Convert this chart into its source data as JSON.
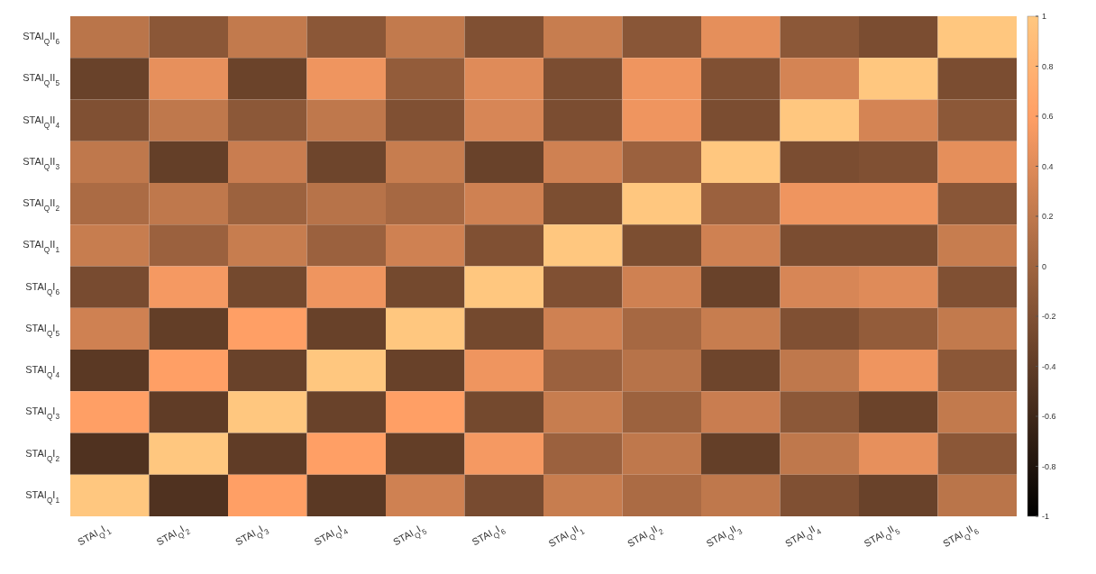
{
  "chart_data": {
    "type": "heatmap",
    "categories": [
      "STAI$_{Q}$I$_{1}$",
      "STAI$_{Q}$I$_{2}$",
      "STAI$_{Q}$I$_{3}$",
      "STAI$_{Q}$I$_{4}$",
      "STAI$_{Q}$I$_{5}$",
      "STAI$_{Q}$I$_{6}$",
      "STAI$_{Q}$II$_{1}$",
      "STAI$_{Q}$II$_{2}$",
      "STAI$_{Q}$II$_{3}$",
      "STAI$_{Q}$II$_{4}$",
      "STAI$_{Q}$II$_{5}$",
      "STAI$_{Q}$II$_{6}$"
    ],
    "y_categories": [
      "STAI$_{Q}$II$_{6}$",
      "STAI$_{Q}$II$_{5}$",
      "STAI$_{Q}$II$_{4}$",
      "STAI$_{Q}$II$_{3}$",
      "STAI$_{Q}$II$_{2}$",
      "STAI$_{Q}$II$_{1}$",
      "STAI$_{Q}$I$_{6}$",
      "STAI$_{Q}$I$_{5}$",
      "STAI$_{Q}$I$_{4}$",
      "STAI$_{Q}$I$_{3}$",
      "STAI$_{Q}$I$_{2}$",
      "STAI$_{Q}$I$_{1}$"
    ],
    "cells": [
      [
        0.17,
        -0.13,
        0.22,
        -0.13,
        0.22,
        -0.2,
        0.25,
        -0.14,
        0.44,
        -0.12,
        -0.23,
        1
      ],
      [
        -0.34,
        0.45,
        -0.33,
        0.5,
        -0.08,
        0.4,
        -0.23,
        0.5,
        -0.2,
        0.33,
        1,
        -0.23
      ],
      [
        -0.2,
        0.2,
        -0.12,
        0.2,
        -0.2,
        0.35,
        -0.23,
        0.5,
        -0.23,
        1,
        0.33,
        -0.12
      ],
      [
        0.2,
        -0.37,
        0.26,
        -0.31,
        0.25,
        -0.34,
        0.3,
        -0.03,
        1,
        -0.23,
        -0.2,
        0.44
      ],
      [
        0.07,
        0.2,
        -0.02,
        0.15,
        0.04,
        0.3,
        -0.22,
        1,
        -0.03,
        0.5,
        0.5,
        -0.14
      ],
      [
        0.25,
        -0.03,
        0.25,
        -0.03,
        0.3,
        -0.2,
        1,
        -0.22,
        0.3,
        -0.23,
        -0.23,
        0.25
      ],
      [
        -0.25,
        0.54,
        -0.27,
        0.5,
        -0.27,
        1,
        -0.2,
        0.3,
        -0.34,
        0.35,
        0.4,
        -0.2
      ],
      [
        0.3,
        -0.38,
        0.6,
        -0.35,
        1,
        -0.27,
        0.3,
        0.04,
        0.25,
        -0.2,
        -0.08,
        0.22
      ],
      [
        -0.43,
        0.6,
        -0.34,
        1,
        -0.35,
        0.5,
        -0.03,
        0.15,
        -0.31,
        0.2,
        0.5,
        -0.13
      ],
      [
        0.6,
        -0.4,
        1,
        -0.34,
        0.6,
        -0.27,
        0.25,
        -0.02,
        0.26,
        -0.12,
        -0.33,
        0.22
      ],
      [
        -0.5,
        1,
        -0.4,
        0.6,
        -0.38,
        0.54,
        -0.03,
        0.2,
        -0.37,
        0.2,
        0.45,
        -0.13
      ],
      [
        1,
        -0.5,
        0.6,
        -0.43,
        0.3,
        -0.25,
        0.25,
        0.07,
        0.2,
        -0.2,
        -0.34,
        0.17
      ]
    ],
    "clim": [
      -1,
      1
    ],
    "cticks": [
      -1,
      -0.8,
      -0.6,
      -0.4,
      -0.2,
      0,
      0.2,
      0.4,
      0.6,
      0.8,
      1
    ]
  }
}
